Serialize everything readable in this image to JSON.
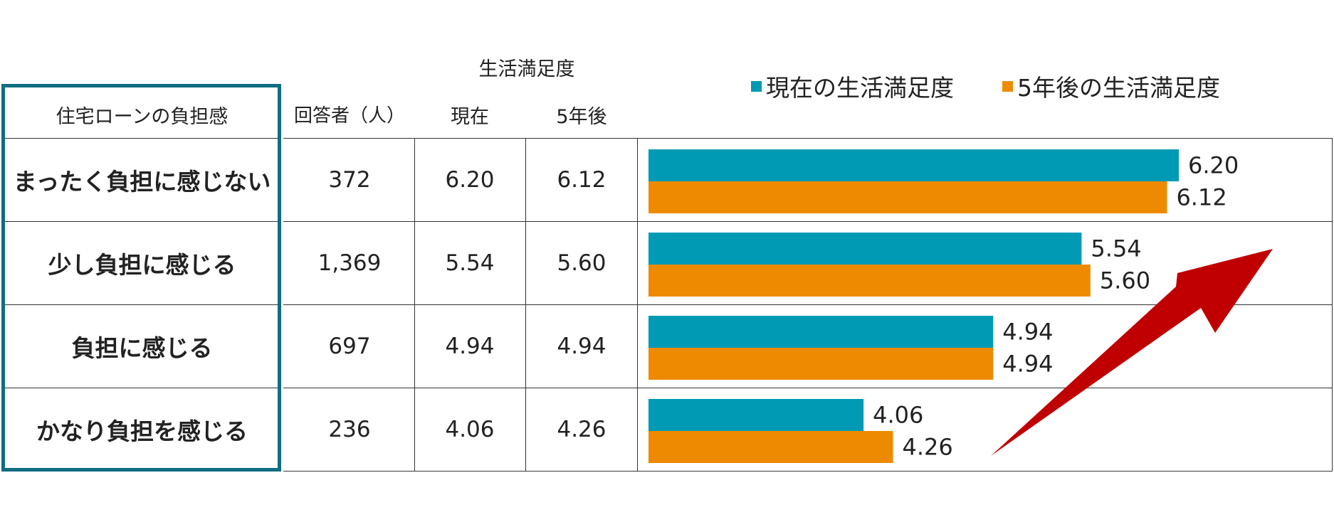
{
  "table": {
    "group_header": "生活満足度",
    "columns": [
      "住宅ローンの負担感",
      "回答者（人）",
      "現在",
      "5年後"
    ],
    "rows": [
      {
        "label": "まったく負担に感じない",
        "respondents": "372",
        "current": "6.20",
        "future": "6.12"
      },
      {
        "label": "少し負担に感じる",
        "respondents": "1,369",
        "current": "5.54",
        "future": "5.60"
      },
      {
        "label": "負担に感じる",
        "respondents": "697",
        "current": "4.94",
        "future": "4.94"
      },
      {
        "label": "かなり負担を感じる",
        "respondents": "236",
        "current": "4.06",
        "future": "4.26"
      }
    ]
  },
  "legend": {
    "current": "現在の生活満足度",
    "future": "5年後の生活満足度"
  },
  "colors": {
    "current": "#009ab5",
    "future": "#ee8a00",
    "arrow": "#c00000",
    "outline": "#0f6d80"
  },
  "chart_data": {
    "type": "bar",
    "orientation": "horizontal",
    "categories": [
      "まったく負担に感じない",
      "少し負担に感じる",
      "負担に感じる",
      "かなり負担を感じる"
    ],
    "series": [
      {
        "name": "現在の生活満足度",
        "values": [
          6.2,
          5.54,
          4.94,
          4.06
        ],
        "labels": [
          "6.20",
          "5.54",
          "4.94",
          "4.06"
        ]
      },
      {
        "name": "5年後の生活満足度",
        "values": [
          6.12,
          5.6,
          4.94,
          4.26
        ],
        "labels": [
          "6.12",
          "5.60",
          "4.94",
          "4.26"
        ]
      }
    ],
    "xlim": [
      2.6,
      6.2
    ],
    "title": "",
    "xlabel": "",
    "ylabel": "",
    "legend_position": "top",
    "grid": false,
    "annotation": "upward-arrow"
  }
}
